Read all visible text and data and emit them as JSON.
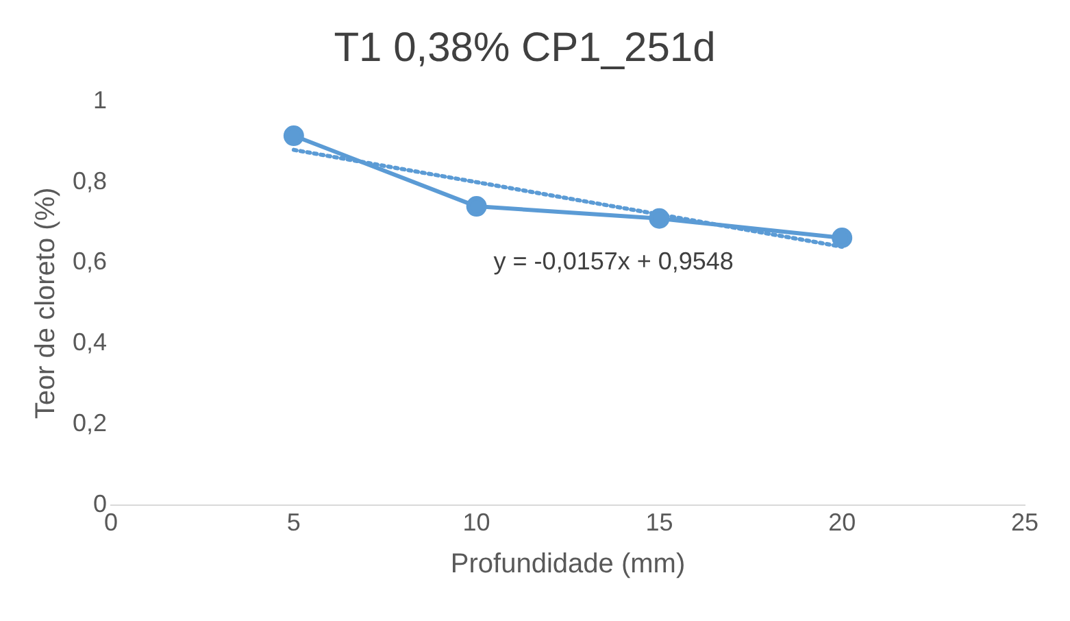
{
  "chart_data": {
    "type": "line",
    "title": "T1 0,38% CP1_251d",
    "xlabel": "Profundidade (mm)",
    "ylabel": "Teor de cloreto (%)",
    "xlim": [
      0,
      25
    ],
    "xticks": [
      0,
      5,
      10,
      15,
      20,
      25
    ],
    "ylim": [
      0,
      1
    ],
    "yticks": [
      {
        "value": 0,
        "label": "0"
      },
      {
        "value": 0.2,
        "label": "0,2"
      },
      {
        "value": 0.4,
        "label": "0,4"
      },
      {
        "value": 0.6,
        "label": "0,6"
      },
      {
        "value": 0.8,
        "label": "0,8"
      },
      {
        "value": 1,
        "label": "1"
      }
    ],
    "grid": false,
    "legend": false,
    "series": [
      {
        "color": "#5b9bd5",
        "x": [
          5,
          10,
          15,
          20
        ],
        "values": [
          0.915,
          0.74,
          0.71,
          0.662
        ],
        "marker": "circle",
        "line_style": "solid"
      },
      {
        "color": "#5b9bd5",
        "x": [
          5,
          20
        ],
        "values": [
          0.88,
          0.64
        ],
        "marker": "none",
        "line_style": "dotted"
      }
    ],
    "annotations": [
      "y = -0,0157x + 0,9548"
    ]
  }
}
